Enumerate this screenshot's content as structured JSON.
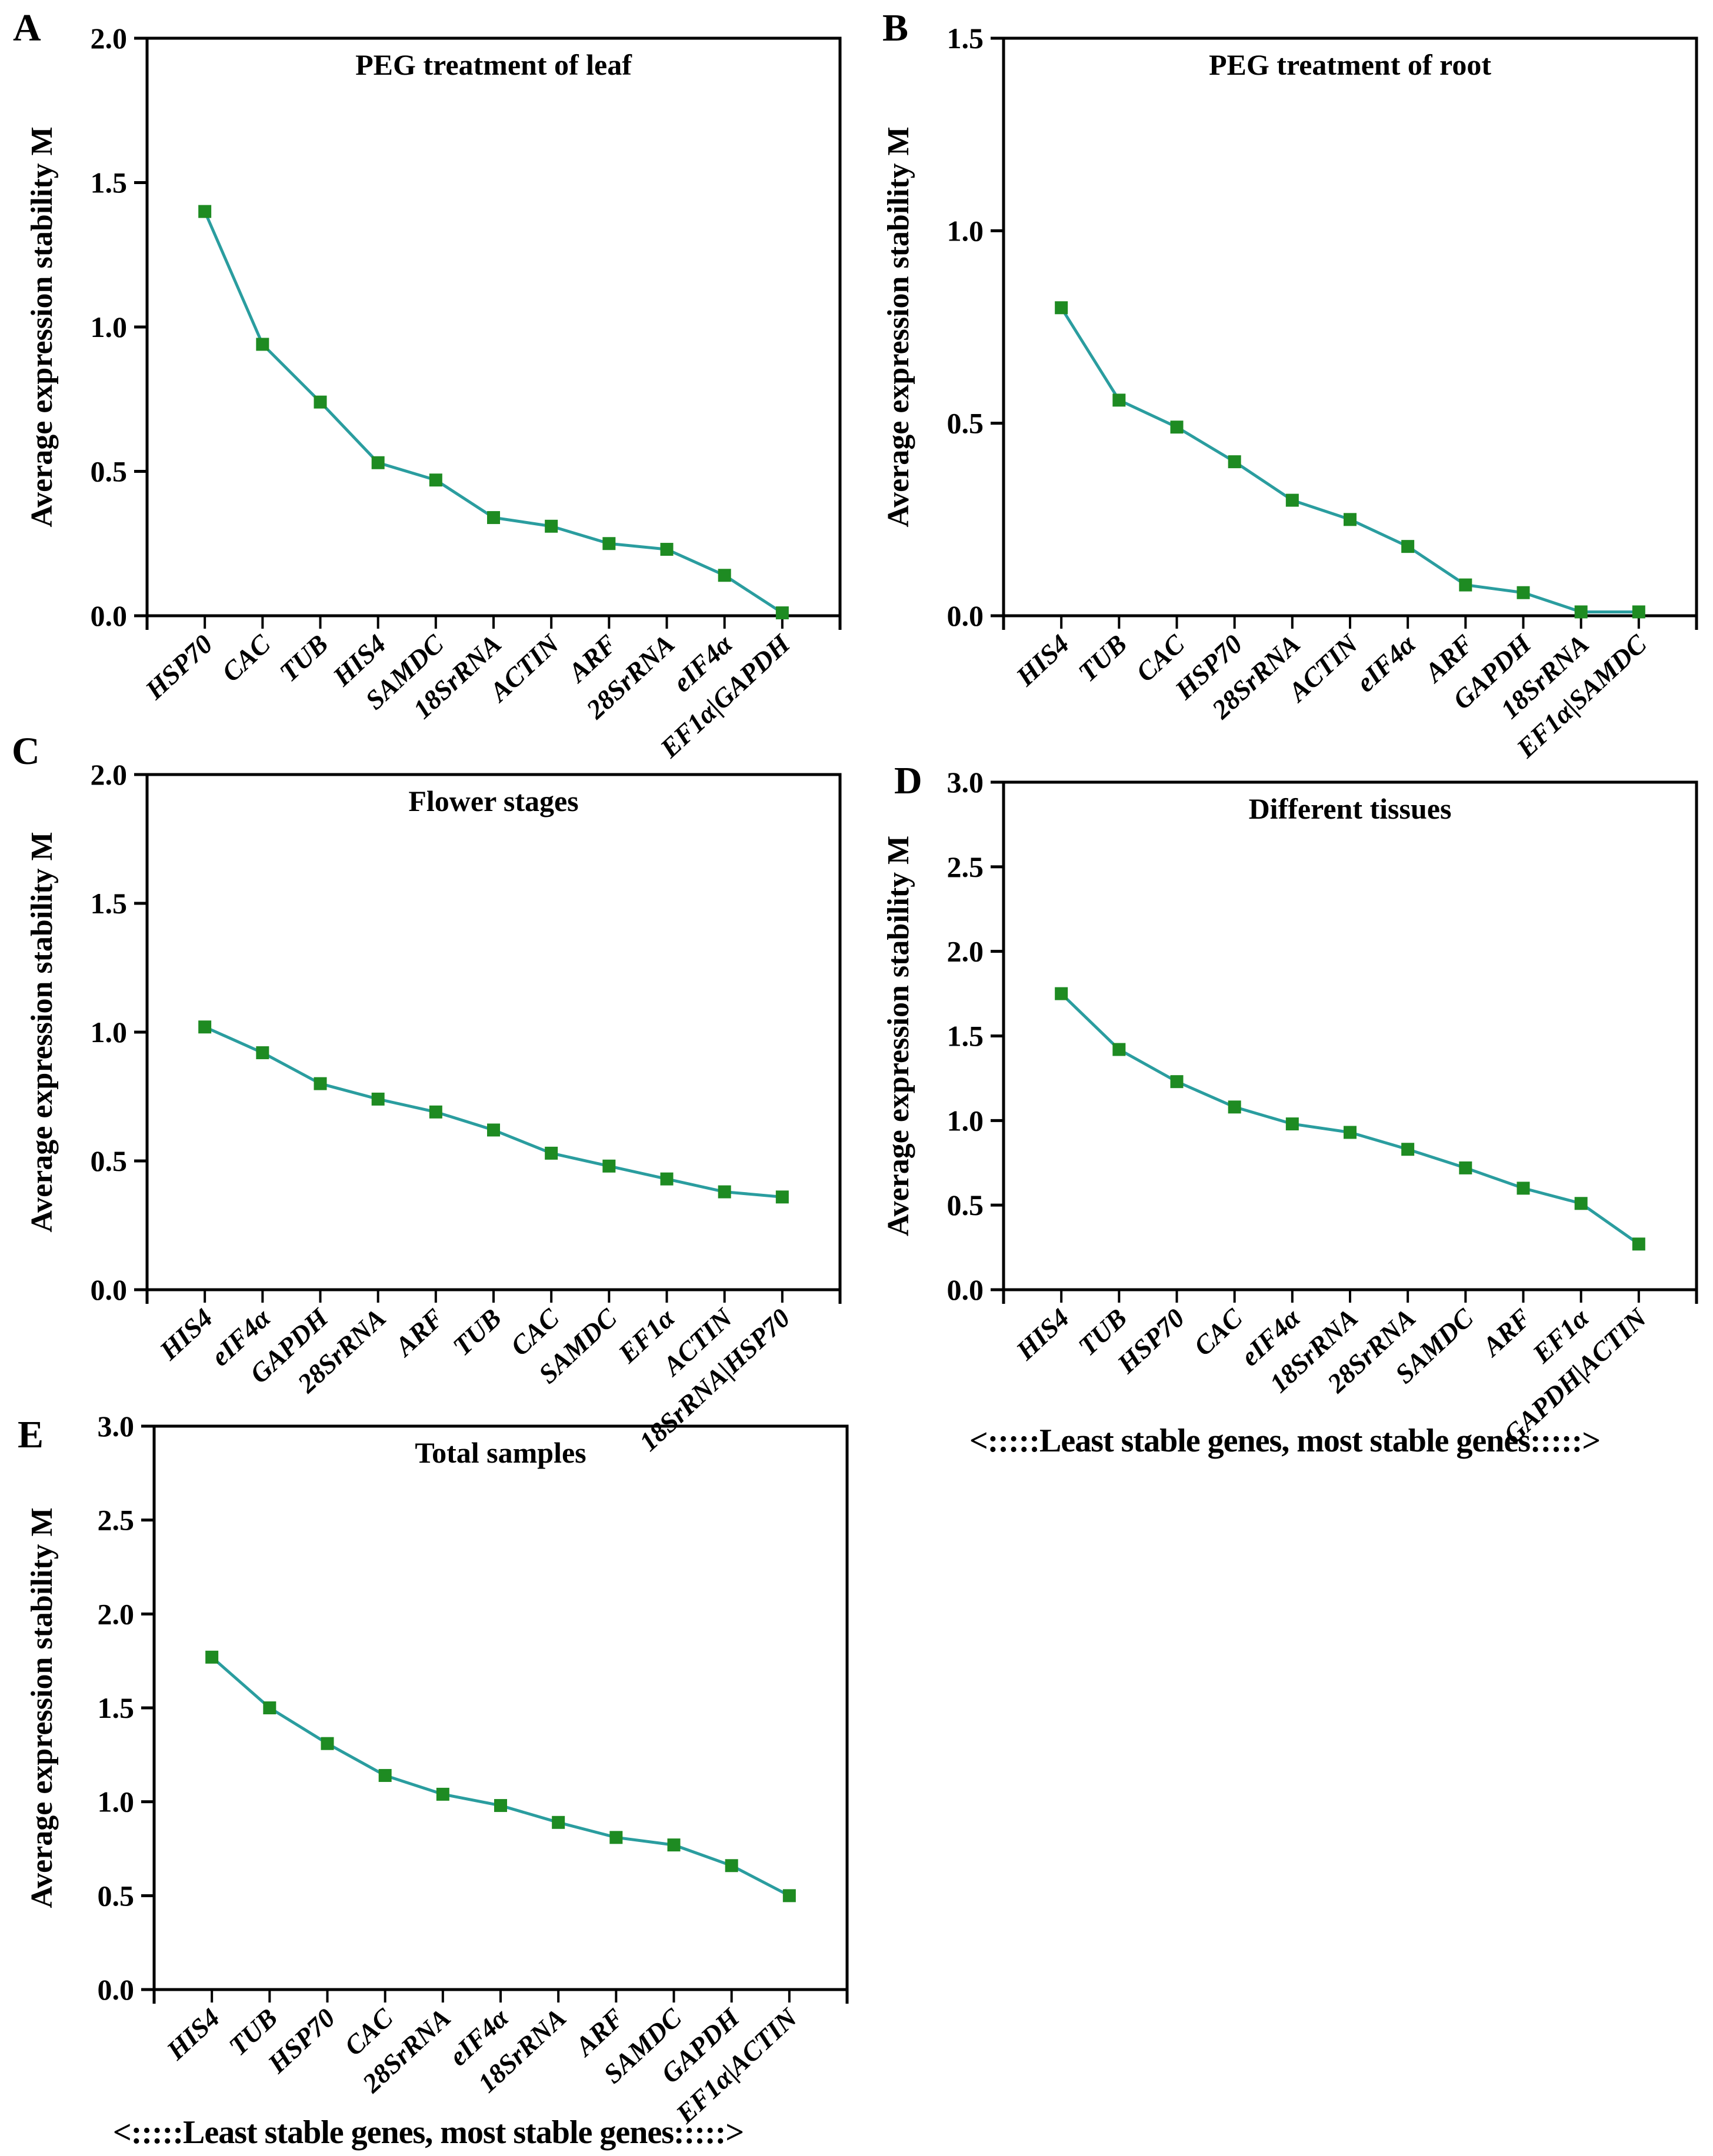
{
  "figure": {
    "ylabel": "Average expression stability M",
    "direction_text": "<:::::Least stable genes, most stable genes:::::>",
    "colors": {
      "line": "#2a9d9f",
      "marker": "#1e8b22",
      "axis": "#000000"
    }
  },
  "chart_data": [
    {
      "type": "line",
      "panel_label": "A",
      "title": "PEG treatment of leaf",
      "xlabel": "",
      "ylabel": "Average expression stability M",
      "ylim": [
        0.0,
        2.0
      ],
      "grid": false,
      "legend": "none",
      "yticks": [
        "0.0",
        "0.5",
        "1.0",
        "1.5",
        "2.0"
      ],
      "categories": [
        "HSP70",
        "CAC",
        "TUB",
        "HIS4",
        "SAMDC",
        "18SrRNA",
        "ACTIN",
        "ARF",
        "28SrRNA",
        "eIF4α",
        "EF1α|GAPDH"
      ],
      "values": [
        1.4,
        0.94,
        0.74,
        0.53,
        0.47,
        0.34,
        0.31,
        0.25,
        0.23,
        0.14,
        0.01
      ]
    },
    {
      "type": "line",
      "panel_label": "B",
      "title": "PEG treatment of root",
      "xlabel": "",
      "ylabel": "Average expression stability M",
      "ylim": [
        0.0,
        1.5
      ],
      "grid": false,
      "legend": "none",
      "yticks": [
        "0.0",
        "0.5",
        "1.0",
        "1.5"
      ],
      "categories": [
        "HIS4",
        "TUB",
        "CAC",
        "HSP70",
        "28SrRNA",
        "ACTIN",
        "eIF4α",
        "ARF",
        "GAPDH",
        "18SrRNA",
        "EF1α|SAMDC"
      ],
      "values": [
        0.8,
        0.56,
        0.49,
        0.4,
        0.3,
        0.25,
        0.18,
        0.08,
        0.06,
        0.01,
        0.01
      ]
    },
    {
      "type": "line",
      "panel_label": "C",
      "title": "Flower stages",
      "xlabel": "",
      "ylabel": "Average expression stability M",
      "ylim": [
        0.0,
        2.0
      ],
      "grid": false,
      "legend": "none",
      "yticks": [
        "0.0",
        "0.5",
        "1.0",
        "1.5",
        "2.0"
      ],
      "categories": [
        "HIS4",
        "eIF4α",
        "GAPDH",
        "28SrRNA",
        "ARF",
        "TUB",
        "CAC",
        "SAMDC",
        "EF1α",
        "ACTIN",
        "18SrRNA|HSP70"
      ],
      "values": [
        1.02,
        0.92,
        0.8,
        0.74,
        0.69,
        0.62,
        0.53,
        0.48,
        0.43,
        0.38,
        0.36
      ]
    },
    {
      "type": "line",
      "panel_label": "D",
      "title": "Different tissues",
      "xlabel": "",
      "ylabel": "Average expression stability M",
      "ylim": [
        0.0,
        3.0
      ],
      "grid": false,
      "legend": "none",
      "yticks": [
        "0.0",
        "0.5",
        "1.0",
        "1.5",
        "2.0",
        "2.5",
        "3.0"
      ],
      "categories": [
        "HIS4",
        "TUB",
        "HSP70",
        "CAC",
        "eIF4α",
        "18SrRNA",
        "28SrRNA",
        "SAMDC",
        "ARF",
        "EF1α",
        "GAPDH|ACTIN"
      ],
      "values": [
        1.75,
        1.42,
        1.23,
        1.08,
        0.98,
        0.93,
        0.83,
        0.72,
        0.6,
        0.51,
        0.27
      ]
    },
    {
      "type": "line",
      "panel_label": "E",
      "title": "Total samples",
      "xlabel": "",
      "ylabel": "Average expression stability M",
      "ylim": [
        0.0,
        3.0
      ],
      "grid": false,
      "legend": "none",
      "yticks": [
        "0.0",
        "0.5",
        "1.0",
        "1.5",
        "2.0",
        "2.5",
        "3.0"
      ],
      "categories": [
        "HIS4",
        "TUB",
        "HSP70",
        "CAC",
        "28SrRNA",
        "eIF4α",
        "18SrRNA",
        "ARF",
        "SAMDC",
        "GAPDH",
        "EF1α|ACTIN"
      ],
      "values": [
        1.77,
        1.5,
        1.31,
        1.14,
        1.04,
        0.98,
        0.89,
        0.81,
        0.77,
        0.66,
        0.5
      ]
    }
  ]
}
